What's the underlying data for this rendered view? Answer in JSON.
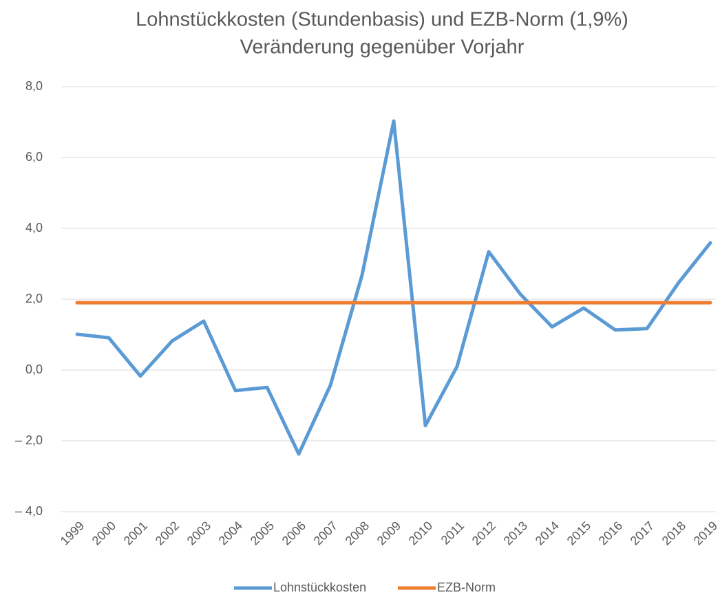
{
  "chart_data": {
    "type": "line",
    "title": "Lohnstückkosten (Stundenbasis) und EZB-Norm (1,9%)",
    "subtitle": "Veränderung gegenüber Vorjahr",
    "categories": [
      "1999",
      "2000",
      "2001",
      "2002",
      "2003",
      "2004",
      "2005",
      "2006",
      "2007",
      "2008",
      "2009",
      "2010",
      "2011",
      "2012",
      "2013",
      "2014",
      "2015",
      "2016",
      "2017",
      "2018",
      "2019"
    ],
    "series": [
      {
        "name": "Lohnstückkosten",
        "color": "#5b9bd5",
        "values": [
          1.01,
          0.91,
          -0.17,
          0.82,
          1.38,
          -0.58,
          -0.49,
          -2.37,
          -0.43,
          2.68,
          7.03,
          -1.57,
          0.1,
          3.34,
          2.14,
          1.22,
          1.75,
          1.13,
          1.17,
          2.47,
          3.59
        ]
      },
      {
        "name": "EZB-Norm",
        "color": "#ed7d31",
        "values": [
          1.9,
          1.9,
          1.9,
          1.9,
          1.9,
          1.9,
          1.9,
          1.9,
          1.9,
          1.9,
          1.9,
          1.9,
          1.9,
          1.9,
          1.9,
          1.9,
          1.9,
          1.9,
          1.9,
          1.9,
          1.9
        ]
      }
    ],
    "ylim": [
      -4,
      8
    ],
    "yticks": [
      {
        "value": -4,
        "label": "– 4,0"
      },
      {
        "value": -2,
        "label": "– 2,0"
      },
      {
        "value": 0,
        "label": "0,0"
      },
      {
        "value": 2,
        "label": "2,0"
      },
      {
        "value": 4,
        "label": "4,0"
      },
      {
        "value": 6,
        "label": "6,0"
      },
      {
        "value": 8,
        "label": "8,0"
      }
    ],
    "grid": true,
    "legend": "bottom"
  }
}
